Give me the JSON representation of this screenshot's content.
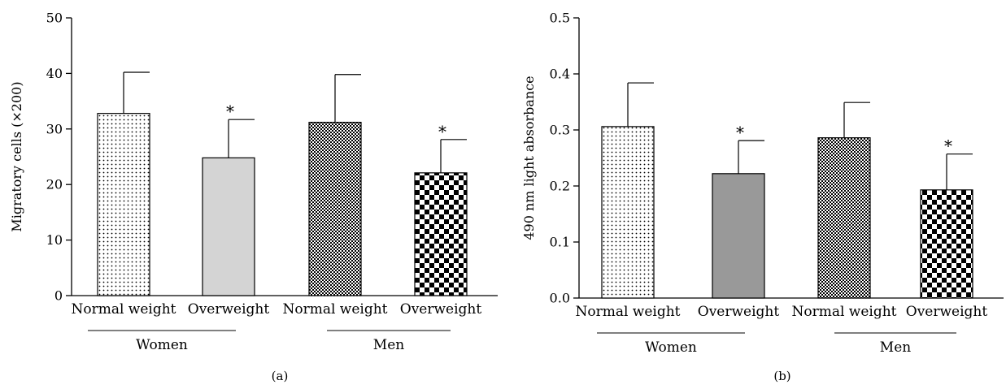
{
  "chart_data": [
    {
      "type": "bar",
      "panel_label": "(a)",
      "ylabel": "Migratory cells (×200)",
      "ylim": [
        0,
        50
      ],
      "yticks": [
        0,
        10,
        20,
        30,
        40,
        50
      ],
      "grid": false,
      "categories": [
        "Normal weight",
        "Overweight",
        "Normal weight",
        "Overweight"
      ],
      "groups": [
        {
          "label": "Women",
          "members": [
            0,
            1
          ]
        },
        {
          "label": "Men",
          "members": [
            2,
            3
          ]
        }
      ],
      "values": [
        32.8,
        24.8,
        31.2,
        22.1
      ],
      "errors": [
        7.4,
        6.9,
        8.6,
        6.0
      ],
      "significance": [
        "",
        "*",
        "",
        "*"
      ],
      "bar_styles": [
        "sparse-dots",
        "light-gray",
        "dense-check",
        "checkerboard"
      ],
      "colors": {
        "light_gray": "#d4d4d4"
      }
    },
    {
      "type": "bar",
      "panel_label": "(b)",
      "ylabel": "490 nm light absorbance",
      "ylim": [
        0,
        0.5
      ],
      "yticks": [
        "0.0",
        "0.1",
        "0.2",
        "0.3",
        "0.4",
        "0.5"
      ],
      "grid": false,
      "categories": [
        "Normal weight",
        "Overweight",
        "Normal weight",
        "Overweight"
      ],
      "groups": [
        {
          "label": "Women",
          "members": [
            0,
            1
          ]
        },
        {
          "label": "Men",
          "members": [
            2,
            3
          ]
        }
      ],
      "values": [
        0.306,
        0.222,
        0.286,
        0.193
      ],
      "errors": [
        0.078,
        0.059,
        0.063,
        0.064
      ],
      "significance": [
        "",
        "*",
        "",
        "*"
      ],
      "bar_styles": [
        "sparse-dots",
        "dark-gray",
        "dense-check",
        "checkerboard"
      ],
      "colors": {
        "dark_gray": "#999999"
      }
    }
  ]
}
